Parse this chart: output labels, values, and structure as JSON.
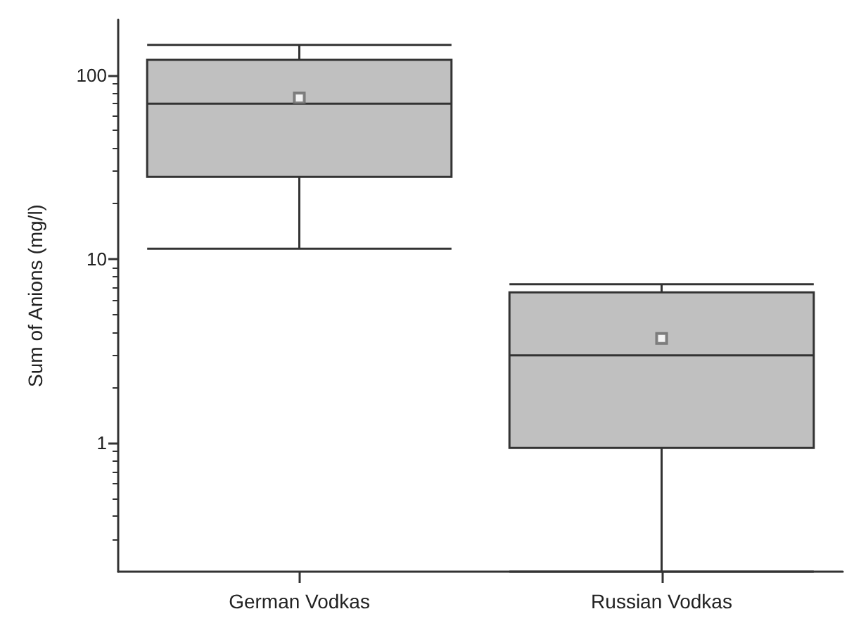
{
  "chart_data": {
    "type": "box",
    "ylabel": "Sum of Anions (mg/l)",
    "categories": [
      "German Vodkas",
      "Russian Vodkas"
    ],
    "color": "#c0c0c0",
    "boxes": [
      {
        "low": 11.4,
        "q1": 28,
        "median": 70,
        "q3": 121,
        "high": 146,
        "mean": 75
      },
      {
        "low": 0.2,
        "q1": 0.94,
        "median": 3.0,
        "q3": 6.6,
        "high": 7.3,
        "mean": 3.7
      }
    ],
    "log": "y",
    "ylim": [
      0.2,
      200
    ],
    "yticks": [
      1,
      10,
      100
    ],
    "grid": false
  }
}
